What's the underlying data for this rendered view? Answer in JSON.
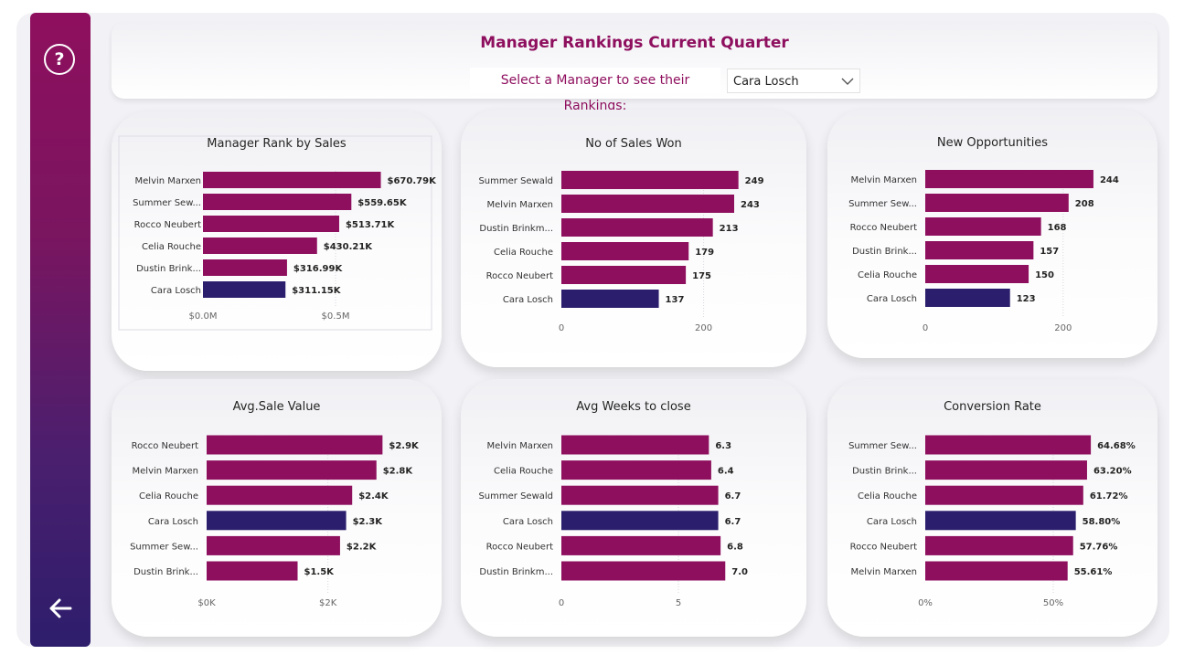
{
  "header": {
    "title": "Manager Rankings Current Quarter",
    "prompt": "Select a Manager to see their Rankings:",
    "selected_manager": "Cara Losch"
  },
  "sidebar": {
    "help_label": "?",
    "help_icon": "help-icon",
    "back_icon": "back-arrow-icon"
  },
  "colors": {
    "bar": "#8e0f5e",
    "highlight": "#2b1f6d",
    "label": "#333333",
    "title": "#252423"
  },
  "chart_data": [
    {
      "type": "bar",
      "orientation": "horizontal",
      "title": "Manager Rank by Sales",
      "categories": [
        "Melvin Marxen",
        "Summer Sew...",
        "Rocco Neubert",
        "Celia Rouche",
        "Dustin Brink...",
        "Cara Losch"
      ],
      "values": [
        670.79,
        559.65,
        513.71,
        430.21,
        316.99,
        311.15
      ],
      "labels": [
        "$670.79K",
        "$559.65K",
        "$513.71K",
        "$430.21K",
        "$316.99K",
        "$311.15K"
      ],
      "highlight": "Cara Losch",
      "xlim": [
        0,
        700
      ],
      "ticks": [
        {
          "value": 0,
          "label": "$0.0M"
        },
        {
          "value": 500,
          "label": "$0.5M"
        }
      ]
    },
    {
      "type": "bar",
      "orientation": "horizontal",
      "title": "No of Sales Won",
      "categories": [
        "Summer Sewald",
        "Melvin Marxen",
        "Dustin Brinkm...",
        "Celia Rouche",
        "Rocco Neubert",
        "Cara Losch"
      ],
      "values": [
        249,
        243,
        213,
        179,
        175,
        137
      ],
      "labels": [
        "249",
        "243",
        "213",
        "179",
        "175",
        "137"
      ],
      "highlight": "Cara Losch",
      "xlim": [
        0,
        270
      ],
      "ticks": [
        {
          "value": 0,
          "label": "0"
        },
        {
          "value": 200,
          "label": "200"
        }
      ]
    },
    {
      "type": "bar",
      "orientation": "horizontal",
      "title": "New Opportunities",
      "categories": [
        "Melvin Marxen",
        "Summer Sew...",
        "Rocco Neubert",
        "Dustin Brink...",
        "Celia Rouche",
        "Cara Losch"
      ],
      "values": [
        244,
        208,
        168,
        157,
        150,
        123
      ],
      "labels": [
        "244",
        "208",
        "168",
        "157",
        "150",
        "123"
      ],
      "highlight": "Cara Losch",
      "xlim": [
        0,
        260
      ],
      "ticks": [
        {
          "value": 0,
          "label": "0"
        },
        {
          "value": 200,
          "label": "200"
        }
      ]
    },
    {
      "type": "bar",
      "orientation": "horizontal",
      "title": "Avg.Sale Value",
      "categories": [
        "Rocco Neubert",
        "Melvin Marxen",
        "Celia Rouche",
        "Cara Losch",
        "Summer Sew...",
        "Dustin Brink..."
      ],
      "values": [
        2.9,
        2.8,
        2.4,
        2.3,
        2.2,
        1.5
      ],
      "labels": [
        "$2.9K",
        "$2.8K",
        "$2.4K",
        "$2.3K",
        "$2.2K",
        "$1.5K"
      ],
      "highlight": "Cara Losch",
      "xlim": [
        0,
        3.0
      ],
      "ticks": [
        {
          "value": 0,
          "label": "$0K"
        },
        {
          "value": 2,
          "label": "$2K"
        }
      ]
    },
    {
      "type": "bar",
      "orientation": "horizontal",
      "title": "Avg Weeks to close",
      "categories": [
        "Melvin Marxen",
        "Celia Rouche",
        "Summer Sewald",
        "Cara Losch",
        "Rocco Neubert",
        "Dustin Brinkm..."
      ],
      "values": [
        6.3,
        6.4,
        6.7,
        6.7,
        6.8,
        7.0
      ],
      "labels": [
        "6.3",
        "6.4",
        "6.7",
        "6.7",
        "6.8",
        "7.0"
      ],
      "highlight": "Cara Losch",
      "xlim": [
        0,
        8.2
      ],
      "ticks": [
        {
          "value": 0,
          "label": "0"
        },
        {
          "value": 5,
          "label": "5"
        }
      ]
    },
    {
      "type": "bar",
      "orientation": "horizontal",
      "title": "Conversion Rate",
      "categories": [
        "Summer Sew...",
        "Dustin Brink...",
        "Celia Rouche",
        "Cara Losch",
        "Rocco Neubert",
        "Melvin Marxen"
      ],
      "values": [
        64.68,
        63.2,
        61.72,
        58.8,
        57.76,
        55.61
      ],
      "labels": [
        "64.68%",
        "63.20%",
        "61.72%",
        "58.80%",
        "57.76%",
        "55.61%"
      ],
      "highlight": "Cara Losch",
      "xlim": [
        0,
        70
      ],
      "ticks": [
        {
          "value": 0,
          "label": "0%"
        },
        {
          "value": 50,
          "label": "50%"
        }
      ]
    }
  ]
}
